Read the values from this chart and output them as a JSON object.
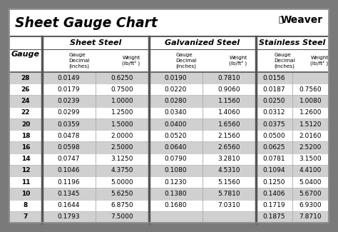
{
  "title": "Sheet Gauge Chart",
  "bg_outer": "#7a7a7a",
  "gauges": [
    28,
    26,
    24,
    22,
    20,
    18,
    16,
    14,
    12,
    11,
    10,
    8,
    7
  ],
  "sheet_steel": [
    [
      "0.0149",
      "0.6250"
    ],
    [
      "0.0179",
      "0.7500"
    ],
    [
      "0.0239",
      "1.0000"
    ],
    [
      "0.0299",
      "1.2500"
    ],
    [
      "0.0359",
      "1.5000"
    ],
    [
      "0.0478",
      "2.0000"
    ],
    [
      "0.0598",
      "2.5000"
    ],
    [
      "0.0747",
      "3.1250"
    ],
    [
      "0.1046",
      "4.3750"
    ],
    [
      "0.1196",
      "5.0000"
    ],
    [
      "0.1345",
      "5.6250"
    ],
    [
      "0.1644",
      "6.8750"
    ],
    [
      "0.1793",
      "7.5000"
    ]
  ],
  "galvanized_steel": [
    [
      "0.0190",
      "0.7810"
    ],
    [
      "0.0220",
      "0.9060"
    ],
    [
      "0.0280",
      "1.1560"
    ],
    [
      "0.0340",
      "1.4060"
    ],
    [
      "0.0400",
      "1.6560"
    ],
    [
      "0.0520",
      "2.1560"
    ],
    [
      "0.0640",
      "2.6560"
    ],
    [
      "0.0790",
      "3.2810"
    ],
    [
      "0.1080",
      "4.5310"
    ],
    [
      "0.1230",
      "5.1560"
    ],
    [
      "0.1380",
      "5.7810"
    ],
    [
      "0.1680",
      "7.0310"
    ],
    [
      "",
      ""
    ]
  ],
  "stainless_steel": [
    [
      "0.0156",
      ""
    ],
    [
      "0.0187",
      "0.7560"
    ],
    [
      "0.0250",
      "1.0080"
    ],
    [
      "0.0312",
      "1.2600"
    ],
    [
      "0.0375",
      "1.5120"
    ],
    [
      "0.0500",
      "2.0160"
    ],
    [
      "0.0625",
      "2.5200"
    ],
    [
      "0.0781",
      "3.1500"
    ],
    [
      "0.1094",
      "4.4100"
    ],
    [
      "0.1250",
      "5.0400"
    ],
    [
      "0.1406",
      "5.6700"
    ],
    [
      "0.1719",
      "6.9300"
    ],
    [
      "0.1875",
      "7.8710"
    ]
  ],
  "row_colors": [
    "#d0d0d0",
    "#ffffff",
    "#d0d0d0",
    "#ffffff",
    "#d0d0d0",
    "#ffffff",
    "#d0d0d0",
    "#ffffff",
    "#d0d0d0",
    "#ffffff",
    "#d0d0d0",
    "#ffffff",
    "#d0d0d0"
  ],
  "section_border_color": "#555555",
  "inner_border_color": "#aaaaaa",
  "thin_border_color": "#cccccc"
}
